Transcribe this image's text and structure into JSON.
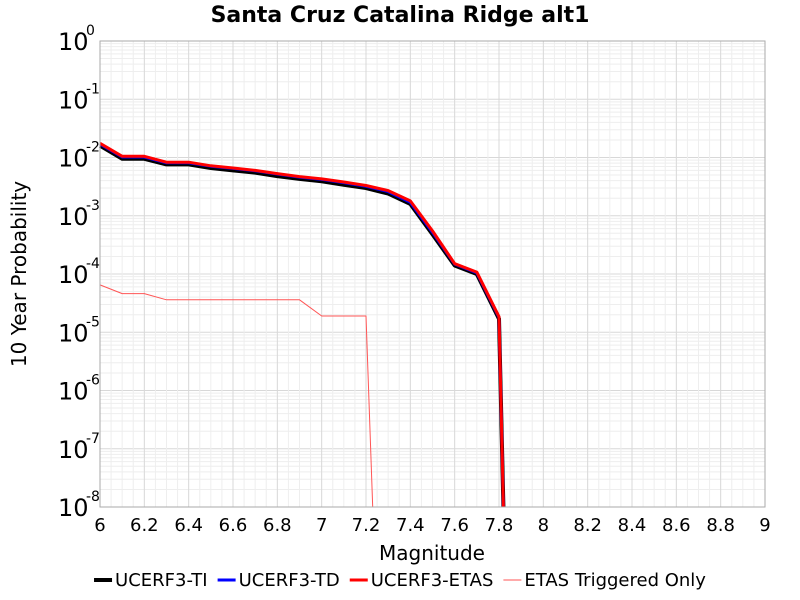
{
  "chart_data": {
    "type": "line",
    "title": "Santa Cruz Catalina Ridge alt1",
    "xlabel": "Magnitude",
    "ylabel": "10 Year Probability",
    "xlim": [
      6,
      9
    ],
    "ylim": [
      1e-08,
      1
    ],
    "y_scale": "log",
    "grid": true,
    "legend_position": "bottom",
    "x_tick_labels": [
      "6",
      "6.2",
      "6.4",
      "6.6",
      "6.8",
      "7",
      "7.2",
      "7.4",
      "7.6",
      "7.8",
      "8",
      "8.2",
      "8.4",
      "8.6",
      "8.8",
      "9"
    ],
    "y_tick_labels": [
      {
        "base": "10",
        "exp": "0"
      },
      {
        "base": "10",
        "exp": "-1"
      },
      {
        "base": "10",
        "exp": "-2"
      },
      {
        "base": "10",
        "exp": "-3"
      },
      {
        "base": "10",
        "exp": "-4"
      },
      {
        "base": "10",
        "exp": "-5"
      },
      {
        "base": "10",
        "exp": "-6"
      },
      {
        "base": "10",
        "exp": "-7"
      },
      {
        "base": "10",
        "exp": "-8"
      }
    ],
    "series": [
      {
        "name": "UCERF3-TI",
        "color": "#000000",
        "x": [
          6.0,
          6.1,
          6.2,
          6.3,
          6.4,
          6.5,
          6.6,
          6.7,
          6.8,
          6.9,
          7.0,
          7.1,
          7.2,
          7.3,
          7.4,
          7.5,
          7.6,
          7.7,
          7.8,
          7.82
        ],
        "y": [
          0.016,
          0.0095,
          0.0095,
          0.0076,
          0.0076,
          0.0066,
          0.006,
          0.0055,
          0.0048,
          0.0043,
          0.0039,
          0.0034,
          0.003,
          0.0024,
          0.0016,
          0.00048,
          0.00014,
          0.0001,
          1.7e-05,
          1e-08
        ]
      },
      {
        "name": "UCERF3-TD",
        "color": "#0000ff",
        "x": [
          6.0,
          6.1,
          6.2,
          6.3,
          6.4,
          6.5,
          6.6,
          6.7,
          6.8,
          6.9,
          7.0,
          7.1,
          7.2,
          7.3,
          7.4,
          7.5,
          7.6,
          7.7,
          7.8,
          7.82
        ],
        "y": [
          0.017,
          0.0102,
          0.0102,
          0.0081,
          0.0081,
          0.0071,
          0.0065,
          0.0059,
          0.0052,
          0.0046,
          0.0042,
          0.0037,
          0.0032,
          0.0026,
          0.0017,
          0.00052,
          0.000148,
          0.000105,
          1.8e-05,
          1e-08
        ]
      },
      {
        "name": "UCERF3-ETAS",
        "color": "#ff0000",
        "x": [
          6.0,
          6.1,
          6.2,
          6.3,
          6.4,
          6.5,
          6.6,
          6.7,
          6.8,
          6.9,
          7.0,
          7.1,
          7.2,
          7.3,
          7.4,
          7.5,
          7.6,
          7.7,
          7.8,
          7.82
        ],
        "y": [
          0.0175,
          0.0105,
          0.0105,
          0.0083,
          0.0083,
          0.0072,
          0.0066,
          0.006,
          0.0053,
          0.0047,
          0.0043,
          0.0038,
          0.0033,
          0.0027,
          0.0018,
          0.00055,
          0.00015,
          0.000108,
          1.85e-05,
          1e-08
        ]
      },
      {
        "name": "ETAS Triggered Only",
        "color": "#ff5555",
        "x": [
          6.0,
          6.1,
          6.2,
          6.3,
          6.4,
          6.5,
          6.6,
          6.7,
          6.8,
          6.9,
          7.0,
          7.1,
          7.2,
          7.23
        ],
        "y": [
          6.5e-05,
          4.6e-05,
          4.6e-05,
          3.6e-05,
          3.6e-05,
          3.6e-05,
          3.6e-05,
          3.6e-05,
          3.6e-05,
          3.6e-05,
          1.9e-05,
          1.9e-05,
          1.9e-05,
          1e-08
        ]
      }
    ]
  }
}
